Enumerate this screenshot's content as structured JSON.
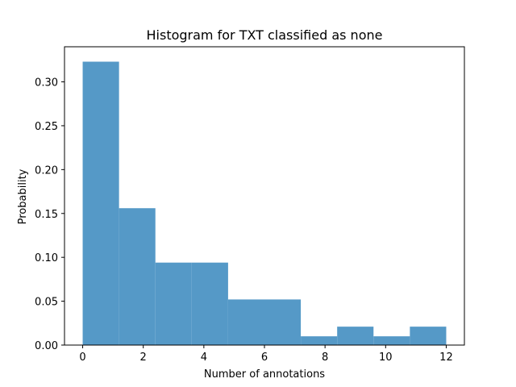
{
  "chart_data": {
    "type": "bar",
    "title": "Histogram for TXT classified as none",
    "xlabel": "Number of annotations",
    "ylabel": "Probability",
    "xlim": [
      -0.6,
      12.6
    ],
    "ylim": [
      0.0,
      0.34
    ],
    "grid": false,
    "bar_color": "#5599c7",
    "bins": [
      {
        "x0": 0.0,
        "x1": 1.2,
        "value": 0.323
      },
      {
        "x0": 1.2,
        "x1": 2.4,
        "value": 0.156
      },
      {
        "x0": 2.4,
        "x1": 3.6,
        "value": 0.094
      },
      {
        "x0": 3.6,
        "x1": 4.8,
        "value": 0.094
      },
      {
        "x0": 4.8,
        "x1": 6.0,
        "value": 0.052
      },
      {
        "x0": 6.0,
        "x1": 7.2,
        "value": 0.052
      },
      {
        "x0": 7.2,
        "x1": 8.4,
        "value": 0.01
      },
      {
        "x0": 8.4,
        "x1": 9.6,
        "value": 0.021
      },
      {
        "x0": 9.6,
        "x1": 10.8,
        "value": 0.01
      },
      {
        "x0": 10.8,
        "x1": 12.0,
        "value": 0.021
      }
    ],
    "xticks": [
      {
        "value": 0,
        "label": "0"
      },
      {
        "value": 2,
        "label": "2"
      },
      {
        "value": 4,
        "label": "4"
      },
      {
        "value": 6,
        "label": "6"
      },
      {
        "value": 8,
        "label": "8"
      },
      {
        "value": 10,
        "label": "10"
      },
      {
        "value": 12,
        "label": "12"
      }
    ],
    "yticks": [
      {
        "value": 0.0,
        "label": "0.00"
      },
      {
        "value": 0.05,
        "label": "0.05"
      },
      {
        "value": 0.1,
        "label": "0.10"
      },
      {
        "value": 0.15,
        "label": "0.15"
      },
      {
        "value": 0.2,
        "label": "0.20"
      },
      {
        "value": 0.25,
        "label": "0.25"
      },
      {
        "value": 0.3,
        "label": "0.30"
      }
    ]
  }
}
